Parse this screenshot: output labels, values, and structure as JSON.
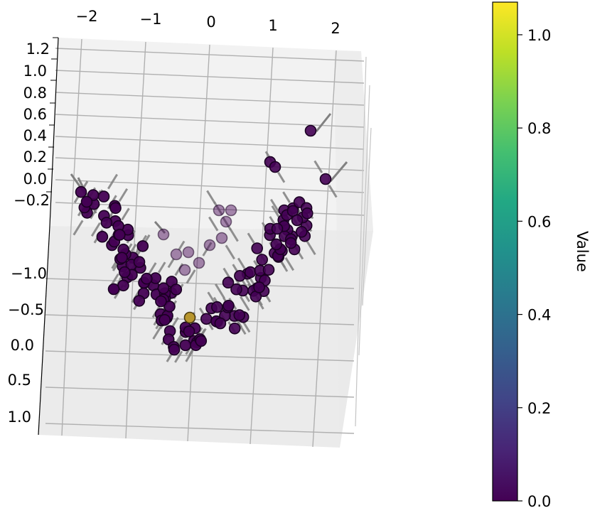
{
  "chart_data": {
    "type": "scatter",
    "projection": "3d",
    "x_axis": {
      "ticks": [
        -2,
        -1,
        0,
        1,
        2
      ],
      "tick_labels": [
        "−2",
        "−1",
        "0",
        "1",
        "2"
      ],
      "range": [
        -2.3,
        2.3
      ]
    },
    "z_axis": {
      "ticks": [
        -0.2,
        0.0,
        0.2,
        0.4,
        0.6,
        0.8,
        1.0,
        1.2
      ],
      "tick_labels": [
        "−0.2",
        "0.0",
        "0.2",
        "0.4",
        "0.6",
        "0.8",
        "1.0",
        "1.2"
      ],
      "range": [
        -0.3,
        1.25
      ]
    },
    "y_axis": {
      "ticks": [
        -1.0,
        -0.5,
        0.0,
        0.5,
        1.0
      ],
      "tick_labels": [
        "−1.0",
        "−0.5",
        "0.0",
        "0.5",
        "1.0"
      ],
      "range": [
        -1.2,
        1.2
      ]
    },
    "grid": true,
    "marker": "circle",
    "error_bars": true,
    "colormap": "viridis",
    "colorbar": {
      "label": "Value",
      "range": [
        0.0,
        1.07
      ],
      "ticks": [
        0.0,
        0.2,
        0.4,
        0.6,
        0.8,
        1.0
      ],
      "tick_labels": [
        "0.0",
        "0.2",
        "0.4",
        "0.6",
        "0.8",
        "1.0"
      ]
    },
    "points": {
      "x_range": [
        -2.0,
        1.8
      ],
      "shape": "z ≈ x² / 4 (V-shaped bowl)",
      "value_min": 0.0,
      "value_max": 1.07,
      "highlighted_point": {
        "x": -0.3,
        "value": 1.07
      }
    }
  }
}
